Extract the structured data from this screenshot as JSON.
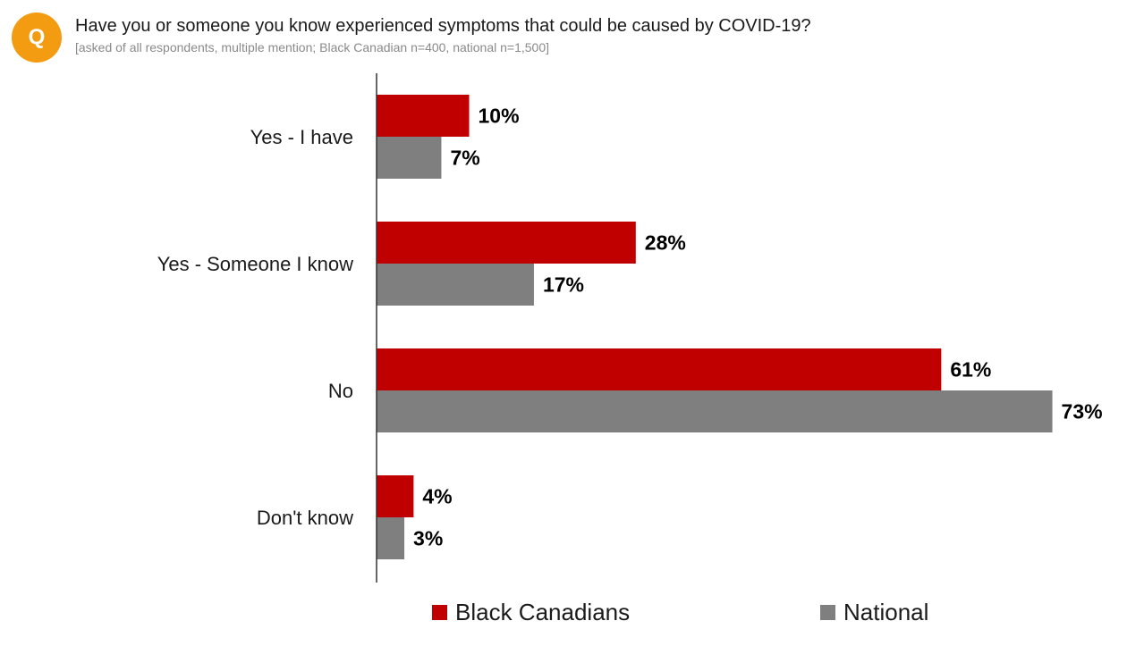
{
  "header": {
    "badge": "Q",
    "question": "Have you or someone you know experienced symptoms that could be caused by COVID-19?",
    "subtitle": "[asked of all respondents, multiple mention; Black Canadian n=400, national n=1,500]"
  },
  "colors": {
    "badge": "#F39C12",
    "black_canadians": "#C00000",
    "national": "#7F7F7F",
    "axis": "#333333"
  },
  "chart_data": {
    "type": "bar",
    "orientation": "horizontal",
    "categories": [
      "Yes - I have",
      "Yes - Someone I know",
      "No",
      "Don't know"
    ],
    "series": [
      {
        "name": "Black Canadians",
        "values": [
          10,
          28,
          61,
          4
        ],
        "labels": [
          "10%",
          "28%",
          "61%",
          "4%"
        ]
      },
      {
        "name": "National",
        "values": [
          7,
          17,
          73,
          3
        ],
        "labels": [
          "7%",
          "17%",
          "73%",
          "3%"
        ]
      }
    ],
    "unit": "%",
    "xlim": [
      0,
      75
    ],
    "grid": false,
    "legend_position": "bottom"
  },
  "legend": {
    "items": [
      {
        "label": "Black Canadians",
        "color": "#C00000"
      },
      {
        "label": "National",
        "color": "#7F7F7F"
      }
    ]
  }
}
